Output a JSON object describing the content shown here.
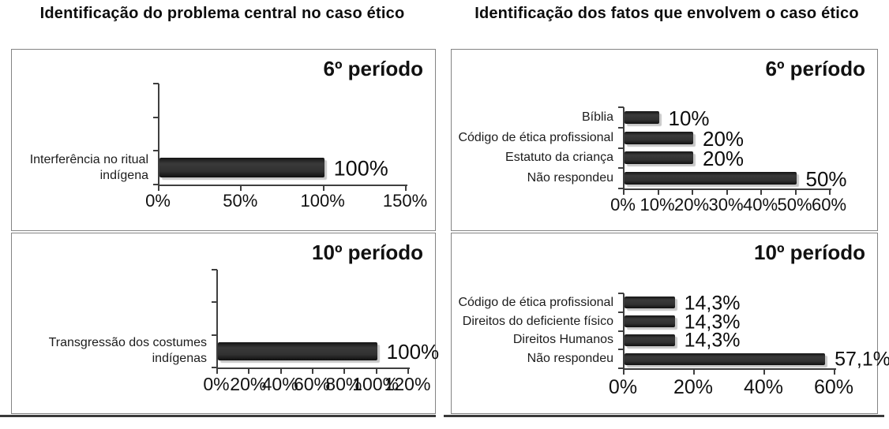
{
  "titles": {
    "left": "Identificação do problema central no caso ético",
    "right": "Identificação dos fatos que envolvem o caso ético"
  },
  "chart_data": [
    {
      "type": "bar",
      "orientation": "horizontal",
      "title": "Identificação do problema central no caso ético",
      "period": "6º período",
      "categories": [
        "Interferência no ritual\nindígena"
      ],
      "values": [
        100
      ],
      "value_labels": [
        "100%"
      ],
      "x_ticks": [
        "0%",
        "50%",
        "100%",
        "150%"
      ],
      "xlim": [
        0,
        150
      ],
      "xlabel": "",
      "ylabel": "",
      "grid": false,
      "legend": false,
      "bar_color": "#2e2e2e"
    },
    {
      "type": "bar",
      "orientation": "horizontal",
      "title": "Identificação do problema central no caso ético",
      "period": "10º período",
      "categories": [
        "Transgressão dos costumes\nindígenas"
      ],
      "values": [
        100
      ],
      "value_labels": [
        "100%"
      ],
      "x_ticks": [
        "0%",
        "20%",
        "40%",
        "60%",
        "80%",
        "100%",
        "120%"
      ],
      "xlim": [
        0,
        120
      ],
      "xlabel": "",
      "ylabel": "",
      "grid": false,
      "legend": false,
      "bar_color": "#2e2e2e"
    },
    {
      "type": "bar",
      "orientation": "horizontal",
      "title": "Identificação dos fatos que envolvem o caso ético",
      "period": "6º período",
      "categories": [
        "Bíblia",
        "Código de ética profissional",
        "Estatuto da criança",
        "Não respondeu"
      ],
      "values": [
        10,
        20,
        20,
        50
      ],
      "value_labels": [
        "10%",
        "20%",
        "20%",
        "50%"
      ],
      "x_ticks": [
        "0%",
        "10%",
        "20%",
        "30%",
        "40%",
        "50%",
        "60%"
      ],
      "xlim": [
        0,
        60
      ],
      "xlabel": "",
      "ylabel": "",
      "grid": false,
      "legend": false,
      "bar_color": "#2e2e2e"
    },
    {
      "type": "bar",
      "orientation": "horizontal",
      "title": "Identificação dos fatos que envolvem o caso ético",
      "period": "10º período",
      "categories": [
        "Código de ética profissional",
        "Direitos do deficiente físico",
        "Direitos Humanos",
        "Não respondeu"
      ],
      "values": [
        14.3,
        14.3,
        14.3,
        57.1
      ],
      "value_labels": [
        "14,3%",
        "14,3%",
        "14,3%",
        "57,1%"
      ],
      "x_ticks": [
        "0%",
        "20%",
        "40%",
        "60%"
      ],
      "xlim": [
        0,
        60
      ],
      "xlabel": "",
      "ylabel": "",
      "grid": false,
      "legend": false,
      "bar_color": "#2e2e2e"
    }
  ]
}
